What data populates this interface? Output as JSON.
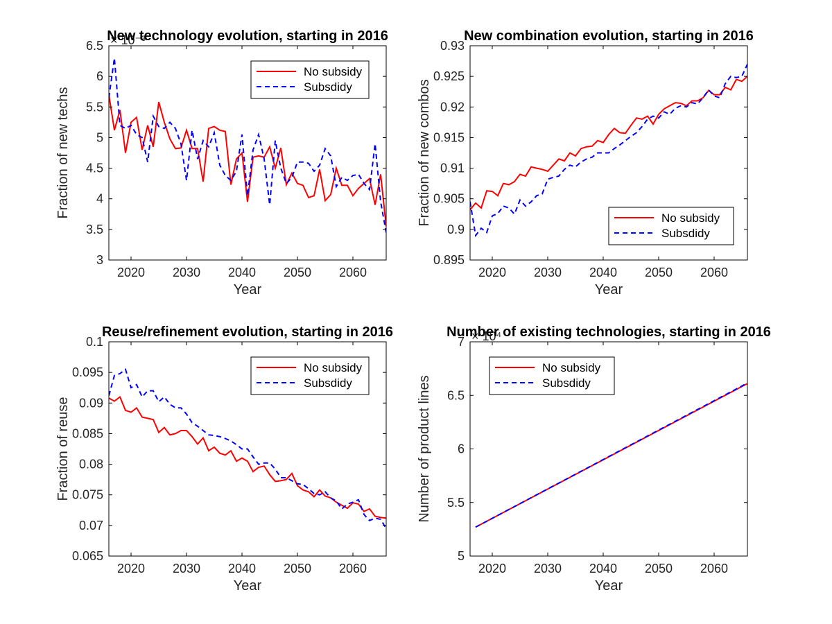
{
  "chart_data": [
    {
      "type": "line",
      "title": "New technology evolution, starting in 2016",
      "xlabel": "Year",
      "ylabel": "Fraction of new techs",
      "exponent_label": "× 10⁻³",
      "xlim": [
        2016,
        2066
      ],
      "ylim": [
        3,
        6.5
      ],
      "xticks": [
        2020,
        2030,
        2040,
        2050,
        2060
      ],
      "yticks": [
        3,
        3.5,
        4,
        4.5,
        5,
        5.5,
        6,
        6.5
      ],
      "ytick_labels": [
        "3",
        "3.5",
        "4",
        "4.5",
        "5",
        "5.5",
        "6",
        "6.5"
      ],
      "legend_position": "top-right",
      "x": [
        2016,
        2017,
        2018,
        2019,
        2020,
        2021,
        2022,
        2023,
        2024,
        2025,
        2026,
        2027,
        2028,
        2029,
        2030,
        2031,
        2032,
        2033,
        2034,
        2035,
        2036,
        2037,
        2038,
        2039,
        2040,
        2041,
        2042,
        2043,
        2044,
        2045,
        2046,
        2047,
        2048,
        2049,
        2050,
        2051,
        2052,
        2053,
        2054,
        2055,
        2056,
        2057,
        2058,
        2059,
        2060,
        2061,
        2062,
        2063,
        2064,
        2065,
        2066
      ],
      "series": [
        {
          "name": "No subsidy",
          "color": "#ff0000",
          "dash": "solid",
          "values": [
            5.7,
            5.12,
            5.45,
            4.75,
            5.25,
            5.33,
            4.8,
            5.2,
            4.85,
            5.58,
            5.25,
            4.98,
            4.82,
            4.83,
            5.12,
            4.82,
            4.82,
            4.28,
            5.15,
            5.18,
            5.12,
            5.1,
            4.23,
            4.65,
            4.75,
            3.95,
            4.68,
            4.7,
            4.68,
            4.85,
            4.5,
            4.83,
            4.23,
            4.42,
            4.25,
            4.22,
            4.02,
            4.05,
            4.48,
            3.97,
            4.07,
            4.5,
            4.22,
            4.22,
            4.05,
            4.17,
            4.25,
            4.33,
            3.9,
            4.4,
            3.55
          ]
        },
        {
          "name": "Subsdidy",
          "color": "#0000ff",
          "dash": "dashed",
          "values": [
            5.65,
            6.3,
            5.2,
            5.15,
            5.2,
            5.05,
            5.0,
            4.6,
            5.35,
            5.18,
            5.15,
            5.25,
            5.15,
            4.9,
            4.3,
            5.12,
            4.65,
            4.95,
            4.85,
            5.08,
            4.55,
            4.38,
            4.3,
            4.45,
            5.05,
            4.05,
            4.8,
            5.05,
            4.65,
            3.9,
            4.95,
            4.5,
            4.25,
            4.35,
            4.6,
            4.6,
            4.58,
            4.45,
            4.55,
            4.82,
            4.7,
            4.2,
            4.35,
            4.3,
            4.38,
            4.4,
            4.25,
            4.15,
            4.9,
            3.95,
            3.45
          ]
        }
      ]
    },
    {
      "type": "line",
      "title": "New combination evolution, starting in 2016",
      "xlabel": "Year",
      "ylabel": "Fraction of new combos",
      "exponent_label": "",
      "xlim": [
        2016,
        2066
      ],
      "ylim": [
        0.895,
        0.93
      ],
      "xticks": [
        2020,
        2030,
        2040,
        2050,
        2060
      ],
      "yticks": [
        0.895,
        0.9,
        0.905,
        0.91,
        0.915,
        0.92,
        0.925,
        0.93
      ],
      "ytick_labels": [
        "0.895",
        "0.9",
        "0.905",
        "0.91",
        "0.915",
        "0.92",
        "0.925",
        "0.93"
      ],
      "legend_position": "bottom-right",
      "x": [
        2016,
        2017,
        2018,
        2019,
        2020,
        2021,
        2022,
        2023,
        2024,
        2025,
        2026,
        2027,
        2028,
        2029,
        2030,
        2031,
        2032,
        2033,
        2034,
        2035,
        2036,
        2037,
        2038,
        2039,
        2040,
        2041,
        2042,
        2043,
        2044,
        2045,
        2046,
        2047,
        2048,
        2049,
        2050,
        2051,
        2052,
        2053,
        2054,
        2055,
        2056,
        2057,
        2058,
        2059,
        2060,
        2061,
        2062,
        2063,
        2064,
        2065,
        2066
      ],
      "series": [
        {
          "name": "No subsidy",
          "color": "#ff0000",
          "dash": "solid",
          "values": [
            0.9032,
            0.9043,
            0.9035,
            0.9063,
            0.9062,
            0.9055,
            0.9075,
            0.9073,
            0.9078,
            0.909,
            0.9087,
            0.9102,
            0.91,
            0.9098,
            0.9095,
            0.9105,
            0.9115,
            0.9112,
            0.9125,
            0.912,
            0.9132,
            0.9135,
            0.9136,
            0.9145,
            0.9142,
            0.9155,
            0.9165,
            0.9158,
            0.9157,
            0.917,
            0.9182,
            0.918,
            0.9185,
            0.9172,
            0.9188,
            0.9197,
            0.9202,
            0.9207,
            0.9206,
            0.9202,
            0.921,
            0.921,
            0.9215,
            0.9227,
            0.922,
            0.922,
            0.9232,
            0.9228,
            0.9245,
            0.9242,
            0.925
          ]
        },
        {
          "name": "Subsdidy",
          "color": "#0000ff",
          "dash": "dashed",
          "values": [
            0.9045,
            0.899,
            0.9002,
            0.8995,
            0.9022,
            0.9026,
            0.9038,
            0.9035,
            0.9025,
            0.9048,
            0.9038,
            0.9045,
            0.9055,
            0.9058,
            0.9082,
            0.9085,
            0.9087,
            0.9098,
            0.9105,
            0.9102,
            0.911,
            0.9115,
            0.9118,
            0.9125,
            0.9125,
            0.9125,
            0.9132,
            0.9138,
            0.9145,
            0.9152,
            0.9158,
            0.9168,
            0.918,
            0.9185,
            0.9182,
            0.9192,
            0.9188,
            0.9198,
            0.9202,
            0.92,
            0.9207,
            0.9205,
            0.9215,
            0.9228,
            0.9218,
            0.9215,
            0.9238,
            0.925,
            0.9248,
            0.925,
            0.927
          ]
        }
      ]
    },
    {
      "type": "line",
      "title": "Reuse/refinement evolution, starting in 2016",
      "xlabel": "Year",
      "ylabel": "Fraction of reuse",
      "exponent_label": "",
      "xlim": [
        2016,
        2066
      ],
      "ylim": [
        0.065,
        0.1
      ],
      "xticks": [
        2020,
        2030,
        2040,
        2050,
        2060
      ],
      "yticks": [
        0.065,
        0.07,
        0.075,
        0.08,
        0.085,
        0.09,
        0.095,
        0.1
      ],
      "ytick_labels": [
        "0.065",
        "0.07",
        "0.075",
        "0.08",
        "0.085",
        "0.09",
        "0.095",
        "0.1"
      ],
      "legend_position": "top-right",
      "x": [
        2016,
        2017,
        2018,
        2019,
        2020,
        2021,
        2022,
        2023,
        2024,
        2025,
        2026,
        2027,
        2028,
        2029,
        2030,
        2031,
        2032,
        2033,
        2034,
        2035,
        2036,
        2037,
        2038,
        2039,
        2040,
        2041,
        2042,
        2043,
        2044,
        2045,
        2046,
        2047,
        2048,
        2049,
        2050,
        2051,
        2052,
        2053,
        2054,
        2055,
        2056,
        2057,
        2058,
        2059,
        2060,
        2061,
        2062,
        2063,
        2064,
        2065,
        2066
      ],
      "series": [
        {
          "name": "No subsidy",
          "color": "#ff0000",
          "dash": "solid",
          "values": [
            0.0908,
            0.0903,
            0.091,
            0.0888,
            0.0885,
            0.0892,
            0.0877,
            0.0875,
            0.0873,
            0.0852,
            0.086,
            0.0848,
            0.085,
            0.0855,
            0.0855,
            0.0845,
            0.0833,
            0.0843,
            0.0822,
            0.0828,
            0.0818,
            0.0815,
            0.0822,
            0.0805,
            0.081,
            0.0805,
            0.0788,
            0.0795,
            0.0797,
            0.0783,
            0.0772,
            0.0773,
            0.0775,
            0.0785,
            0.0765,
            0.0758,
            0.0755,
            0.0747,
            0.0758,
            0.0748,
            0.0745,
            0.0738,
            0.0733,
            0.0728,
            0.0737,
            0.0735,
            0.0723,
            0.0727,
            0.0715,
            0.0713,
            0.0712
          ]
        },
        {
          "name": "Subsdidy",
          "color": "#0000ff",
          "dash": "dashed",
          "values": [
            0.0912,
            0.0945,
            0.0948,
            0.0955,
            0.0925,
            0.093,
            0.091,
            0.092,
            0.092,
            0.0902,
            0.091,
            0.0898,
            0.0892,
            0.0892,
            0.0882,
            0.0868,
            0.0862,
            0.0855,
            0.0848,
            0.0847,
            0.0845,
            0.0842,
            0.0838,
            0.0832,
            0.0825,
            0.0825,
            0.0812,
            0.08,
            0.0802,
            0.0802,
            0.0792,
            0.0778,
            0.0778,
            0.0773,
            0.0768,
            0.0767,
            0.076,
            0.0752,
            0.075,
            0.0755,
            0.0745,
            0.074,
            0.0727,
            0.0735,
            0.0738,
            0.0742,
            0.0718,
            0.0708,
            0.0712,
            0.071,
            0.0695
          ]
        }
      ]
    },
    {
      "type": "line",
      "title": "Number of existing technologies, starting in 2016",
      "xlabel": "Year",
      "ylabel": "Number of product lines",
      "exponent_label": "× 10⁴",
      "xlim": [
        2016,
        2066
      ],
      "ylim": [
        5,
        7
      ],
      "xticks": [
        2020,
        2030,
        2040,
        2050,
        2060
      ],
      "yticks": [
        5,
        5.5,
        6,
        6.5,
        7
      ],
      "ytick_labels": [
        "5",
        "5.5",
        "6",
        "6.5",
        "7"
      ],
      "legend_position": "top-left",
      "x": [
        2017,
        2066
      ],
      "series": [
        {
          "name": "No subsidy",
          "color": "#ff0000",
          "dash": "solid",
          "values": [
            5.27,
            6.61
          ]
        },
        {
          "name": "Subsdidy",
          "color": "#0000ff",
          "dash": "dashed",
          "values": [
            5.27,
            6.615
          ]
        }
      ]
    }
  ]
}
